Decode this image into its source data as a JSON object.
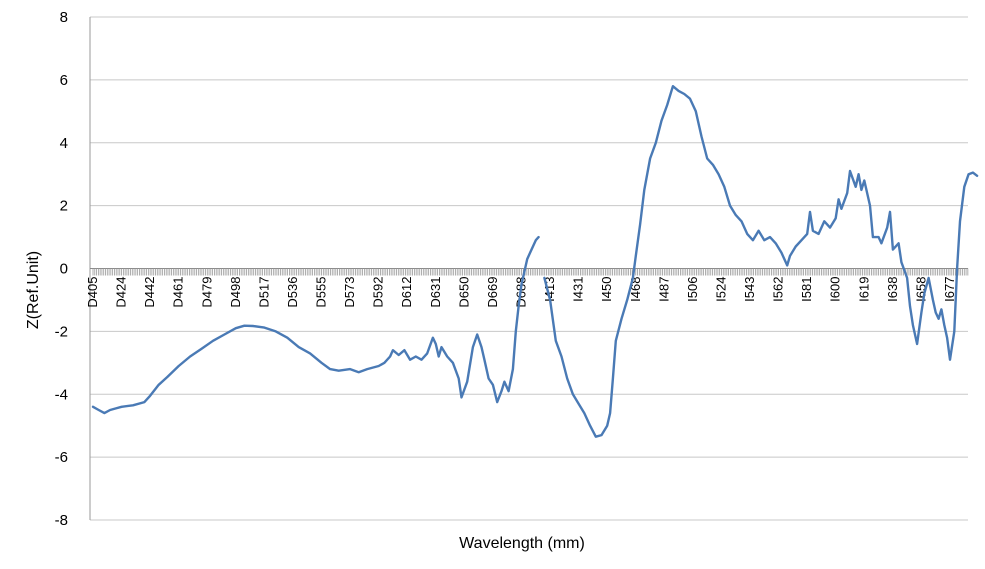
{
  "chart_data": {
    "type": "line",
    "title": "",
    "xlabel": "Wavelength (mm)",
    "ylabel": "Z(Ref.Unit)",
    "ylim": [
      -8,
      8
    ],
    "yticks": [
      "8",
      "6",
      "4",
      "2",
      "0",
      "-2",
      "-4",
      "-6",
      "-8"
    ],
    "grid": true,
    "legend": "none",
    "line_color": "#4a7ab5",
    "grid_color": "#c8c8c8",
    "categories": [
      "D405",
      "D424",
      "D442",
      "D461",
      "D479",
      "D498",
      "D517",
      "D536",
      "D555",
      "D573",
      "D592",
      "D612",
      "D631",
      "D650",
      "D669",
      "D688",
      "I413",
      "I431",
      "I450",
      "I468",
      "I487",
      "I506",
      "I524",
      "I543",
      "I562",
      "I581",
      "I600",
      "I619",
      "I638",
      "I658",
      "I677"
    ],
    "series": [
      {
        "segments": [
          [
            [
              0,
              -4.4
            ],
            [
              0.2,
              -4.5
            ],
            [
              0.4,
              -4.6
            ],
            [
              0.6,
              -4.5
            ],
            [
              0.8,
              -4.45
            ],
            [
              1.0,
              -4.4
            ],
            [
              1.4,
              -4.35
            ],
            [
              1.8,
              -4.25
            ],
            [
              2.0,
              -4.05
            ],
            [
              2.3,
              -3.7
            ],
            [
              2.6,
              -3.45
            ],
            [
              3.0,
              -3.1
            ],
            [
              3.4,
              -2.8
            ],
            [
              3.8,
              -2.55
            ],
            [
              4.2,
              -2.3
            ],
            [
              4.6,
              -2.1
            ],
            [
              5.0,
              -1.9
            ],
            [
              5.3,
              -1.82
            ],
            [
              5.6,
              -1.83
            ],
            [
              6.0,
              -1.88
            ],
            [
              6.4,
              -2.0
            ],
            [
              6.8,
              -2.2
            ],
            [
              7.2,
              -2.5
            ],
            [
              7.6,
              -2.7
            ],
            [
              8.0,
              -3.0
            ],
            [
              8.3,
              -3.2
            ],
            [
              8.6,
              -3.25
            ],
            [
              9.0,
              -3.2
            ],
            [
              9.3,
              -3.3
            ],
            [
              9.6,
              -3.2
            ],
            [
              10.0,
              -3.1
            ],
            [
              10.2,
              -3.0
            ],
            [
              10.4,
              -2.8
            ],
            [
              10.5,
              -2.6
            ],
            [
              10.7,
              -2.75
            ],
            [
              10.9,
              -2.6
            ],
            [
              11.1,
              -2.9
            ],
            [
              11.3,
              -2.8
            ],
            [
              11.5,
              -2.9
            ],
            [
              11.7,
              -2.7
            ],
            [
              11.9,
              -2.2
            ],
            [
              12.0,
              -2.4
            ],
            [
              12.1,
              -2.8
            ],
            [
              12.2,
              -2.5
            ],
            [
              12.4,
              -2.8
            ],
            [
              12.6,
              -3.0
            ],
            [
              12.8,
              -3.5
            ],
            [
              12.9,
              -4.1
            ],
            [
              13.1,
              -3.6
            ],
            [
              13.3,
              -2.5
            ],
            [
              13.45,
              -2.1
            ],
            [
              13.6,
              -2.5
            ],
            [
              13.7,
              -2.9
            ],
            [
              13.85,
              -3.5
            ],
            [
              14.0,
              -3.7
            ],
            [
              14.15,
              -4.25
            ],
            [
              14.3,
              -3.9
            ],
            [
              14.4,
              -3.6
            ],
            [
              14.55,
              -3.9
            ],
            [
              14.7,
              -3.2
            ],
            [
              14.8,
              -2.0
            ],
            [
              14.9,
              -1.2
            ],
            [
              15.0,
              -0.5
            ],
            [
              15.1,
              -0.1
            ],
            [
              15.2,
              0.3
            ],
            [
              15.35,
              0.6
            ],
            [
              15.5,
              0.9
            ],
            [
              15.6,
              1.0
            ]
          ],
          [
            [
              15.8,
              -0.3
            ],
            [
              16.0,
              -1.0
            ],
            [
              16.2,
              -2.3
            ],
            [
              16.4,
              -2.8
            ],
            [
              16.6,
              -3.5
            ],
            [
              16.8,
              -4.0
            ],
            [
              17.0,
              -4.3
            ],
            [
              17.2,
              -4.6
            ],
            [
              17.4,
              -5.0
            ],
            [
              17.6,
              -5.35
            ],
            [
              17.8,
              -5.3
            ],
            [
              18.0,
              -5.0
            ],
            [
              18.1,
              -4.6
            ],
            [
              18.2,
              -3.5
            ],
            [
              18.3,
              -2.3
            ],
            [
              18.5,
              -1.6
            ],
            [
              18.7,
              -1.0
            ],
            [
              18.9,
              -0.3
            ],
            [
              19.0,
              0.4
            ],
            [
              19.15,
              1.4
            ],
            [
              19.3,
              2.5
            ],
            [
              19.5,
              3.5
            ],
            [
              19.7,
              4.0
            ],
            [
              19.9,
              4.7
            ],
            [
              20.1,
              5.2
            ],
            [
              20.3,
              5.8
            ],
            [
              20.5,
              5.65
            ],
            [
              20.7,
              5.55
            ],
            [
              20.9,
              5.4
            ],
            [
              21.1,
              5.0
            ],
            [
              21.3,
              4.2
            ],
            [
              21.5,
              3.5
            ],
            [
              21.7,
              3.3
            ],
            [
              21.9,
              3.0
            ],
            [
              22.1,
              2.6
            ],
            [
              22.3,
              2.0
            ],
            [
              22.5,
              1.7
            ],
            [
              22.7,
              1.5
            ],
            [
              22.9,
              1.1
            ],
            [
              23.1,
              0.9
            ],
            [
              23.3,
              1.2
            ],
            [
              23.5,
              0.9
            ],
            [
              23.7,
              1.0
            ],
            [
              23.9,
              0.8
            ],
            [
              24.1,
              0.5
            ],
            [
              24.3,
              0.1
            ],
            [
              24.4,
              0.4
            ],
            [
              24.6,
              0.7
            ],
            [
              24.8,
              0.9
            ],
            [
              25.0,
              1.1
            ],
            [
              25.1,
              1.8
            ],
            [
              25.2,
              1.2
            ],
            [
              25.4,
              1.1
            ],
            [
              25.6,
              1.5
            ],
            [
              25.8,
              1.3
            ],
            [
              26.0,
              1.6
            ],
            [
              26.1,
              2.2
            ],
            [
              26.2,
              1.9
            ],
            [
              26.4,
              2.4
            ],
            [
              26.5,
              3.1
            ],
            [
              26.7,
              2.6
            ],
            [
              26.8,
              3.0
            ],
            [
              26.9,
              2.5
            ],
            [
              27.0,
              2.8
            ],
            [
              27.2,
              2.0
            ],
            [
              27.3,
              1.0
            ],
            [
              27.5,
              1.0
            ],
            [
              27.6,
              0.8
            ],
            [
              27.8,
              1.3
            ],
            [
              27.9,
              1.8
            ],
            [
              28.0,
              0.6
            ],
            [
              28.2,
              0.8
            ],
            [
              28.3,
              0.2
            ],
            [
              28.5,
              -0.3
            ],
            [
              28.6,
              -1.2
            ],
            [
              28.7,
              -1.8
            ],
            [
              28.85,
              -2.4
            ],
            [
              29.0,
              -1.4
            ],
            [
              29.1,
              -0.8
            ],
            [
              29.25,
              -0.3
            ],
            [
              29.4,
              -1.0
            ],
            [
              29.5,
              -1.4
            ],
            [
              29.6,
              -1.6
            ],
            [
              29.7,
              -1.3
            ],
            [
              29.8,
              -1.8
            ],
            [
              29.9,
              -2.2
            ],
            [
              30.0,
              -2.9
            ],
            [
              30.15,
              -2.0
            ],
            [
              30.25,
              0.0
            ],
            [
              30.35,
              1.5
            ],
            [
              30.5,
              2.6
            ],
            [
              30.65,
              3.0
            ],
            [
              30.8,
              3.05
            ],
            [
              30.95,
              2.95
            ]
          ]
        ]
      }
    ]
  }
}
